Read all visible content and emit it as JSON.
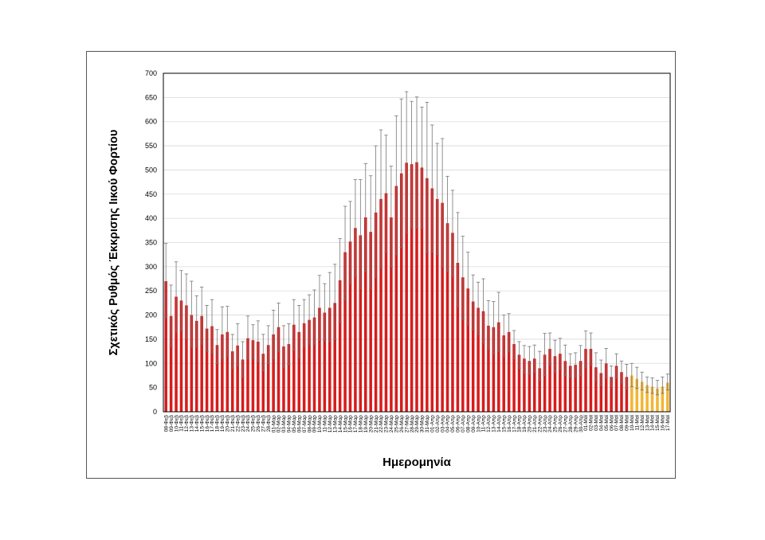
{
  "chart_data": {
    "type": "bar",
    "title": "",
    "xlabel": "Ημερομηνία",
    "ylabel": "Σχετικός Ρυθμός Έκκρισης Ιικού Φορτίου",
    "ylim": [
      0,
      700
    ],
    "yticks": [
      0,
      50,
      100,
      150,
      200,
      250,
      300,
      350,
      400,
      450,
      500,
      550,
      600,
      650,
      700
    ],
    "grid": true,
    "legend": "none",
    "colors": {
      "primary": "#d71c1c",
      "recent": "#f2b632",
      "error_bar": "#777777"
    },
    "categories": [
      "08-Φεβ",
      "09-Φεβ",
      "10-Φεβ",
      "11-Φεβ",
      "12-Φεβ",
      "13-Φεβ",
      "14-Φεβ",
      "15-Φεβ",
      "16-Φεβ",
      "17-Φεβ",
      "18-Φεβ",
      "19-Φεβ",
      "20-Φεβ",
      "21-Φεβ",
      "22-Φεβ",
      "23-Φεβ",
      "24-Φεβ",
      "25-Φεβ",
      "26-Φεβ",
      "27-Φεβ",
      "28-Φεβ",
      "01-Μαρ",
      "02-Μαρ",
      "03-Μαρ",
      "04-Μαρ",
      "05-Μαρ",
      "06-Μαρ",
      "07-Μαρ",
      "08-Μαρ",
      "09-Μαρ",
      "10-Μαρ",
      "11-Μαρ",
      "12-Μαρ",
      "13-Μαρ",
      "14-Μαρ",
      "15-Μαρ",
      "16-Μαρ",
      "17-Μαρ",
      "18-Μαρ",
      "19-Μαρ",
      "20-Μαρ",
      "21-Μαρ",
      "22-Μαρ",
      "23-Μαρ",
      "24-Μαρ",
      "25-Μαρ",
      "26-Μαρ",
      "27-Μαρ",
      "28-Μαρ",
      "29-Μαρ",
      "30-Μαρ",
      "31-Μαρ",
      "01-Απρ",
      "02-Απρ",
      "03-Απρ",
      "04-Απρ",
      "05-Απρ",
      "06-Απρ",
      "07-Απρ",
      "08-Απρ",
      "09-Απρ",
      "10-Απρ",
      "11-Απρ",
      "12-Απρ",
      "13-Απρ",
      "14-Απρ",
      "15-Απρ",
      "16-Απρ",
      "17-Απρ",
      "18-Απρ",
      "19-Απρ",
      "20-Απρ",
      "21-Απρ",
      "22-Απρ",
      "23-Απρ",
      "24-Απρ",
      "25-Απρ",
      "26-Απρ",
      "27-Απρ",
      "28-Απρ",
      "29-Απρ",
      "30-Απρ",
      "01-Μαϊ",
      "02-Μαϊ",
      "03-Μαϊ",
      "04-Μαϊ",
      "05-Μαϊ",
      "06-Μαϊ",
      "07-Μαϊ",
      "08-Μαϊ",
      "09-Μαϊ",
      "10-Μαϊ",
      "11-Μαϊ",
      "12-Μαϊ",
      "13-Μαϊ",
      "14-Μαϊ",
      "15-Μαϊ",
      "16-Μαϊ",
      "17-Μαϊ"
    ],
    "values": [
      270,
      198,
      238,
      230,
      220,
      200,
      188,
      198,
      172,
      177,
      138,
      160,
      165,
      125,
      137,
      108,
      152,
      148,
      145,
      120,
      138,
      160,
      175,
      135,
      140,
      180,
      165,
      183,
      190,
      195,
      215,
      205,
      215,
      225,
      272,
      330,
      352,
      380,
      365,
      402,
      372,
      412,
      440,
      452,
      402,
      467,
      493,
      515,
      512,
      516,
      505,
      483,
      462,
      440,
      432,
      390,
      370,
      308,
      278,
      255,
      228,
      215,
      208,
      178,
      175,
      185,
      158,
      165,
      140,
      118,
      110,
      105,
      110,
      90,
      118,
      130,
      115,
      120,
      105,
      95,
      97,
      105,
      130,
      130,
      92,
      80,
      100,
      72,
      95,
      82,
      72,
      75,
      68,
      62,
      55,
      52,
      48,
      52,
      60
    ],
    "error_upper": [
      348,
      262,
      310,
      292,
      285,
      270,
      240,
      258,
      220,
      232,
      170,
      217,
      218,
      160,
      182,
      145,
      198,
      180,
      188,
      160,
      178,
      210,
      225,
      178,
      182,
      232,
      220,
      232,
      242,
      252,
      282,
      265,
      288,
      305,
      358,
      425,
      435,
      480,
      480,
      513,
      488,
      550,
      583,
      572,
      508,
      612,
      647,
      662,
      642,
      651,
      630,
      640,
      593,
      555,
      565,
      487,
      458,
      412,
      363,
      330,
      283,
      268,
      275,
      230,
      228,
      247,
      200,
      203,
      168,
      145,
      137,
      135,
      138,
      125,
      162,
      163,
      148,
      152,
      138,
      120,
      122,
      137,
      167,
      163,
      122,
      107,
      131,
      95,
      120,
      105,
      98,
      100,
      92,
      82,
      72,
      70,
      65,
      72,
      78
    ],
    "error_lower": [
      195,
      135,
      165,
      168,
      152,
      135,
      135,
      140,
      125,
      122,
      100,
      110,
      115,
      90,
      96,
      72,
      110,
      110,
      104,
      85,
      100,
      110,
      125,
      92,
      98,
      128,
      112,
      135,
      140,
      140,
      148,
      148,
      145,
      150,
      185,
      232,
      265,
      280,
      255,
      290,
      255,
      278,
      298,
      330,
      300,
      325,
      340,
      370,
      380,
      381,
      380,
      330,
      330,
      325,
      300,
      290,
      280,
      218,
      192,
      180,
      170,
      160,
      142,
      130,
      120,
      125,
      115,
      125,
      110,
      90,
      80,
      78,
      82,
      65,
      75,
      97,
      82,
      88,
      75,
      72,
      72,
      75,
      92,
      97,
      65,
      55,
      70,
      52,
      70,
      60,
      48,
      52,
      48,
      45,
      40,
      38,
      35,
      38,
      45
    ],
    "highlight_from_index": 91
  }
}
